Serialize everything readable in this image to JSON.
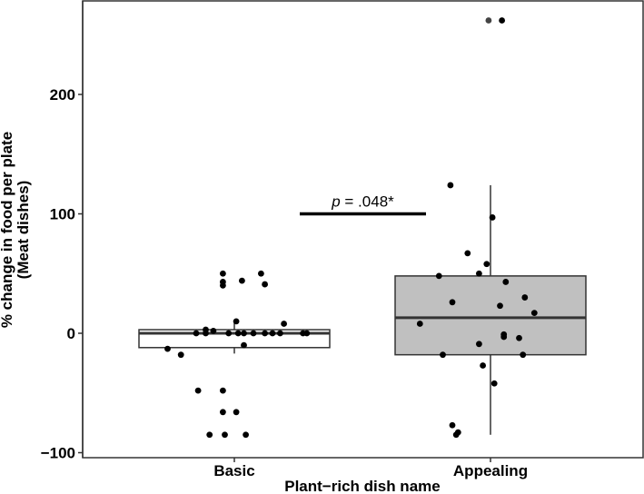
{
  "chart_data": {
    "type": "box",
    "xlabel": "Plant−rich dish name",
    "ylabel_line1": "% change in food per plate",
    "ylabel_line2": "(Meat dishes)",
    "ylim": [
      -100,
      265
    ],
    "yticks": [
      -100,
      0,
      100,
      200
    ],
    "ytick_labels": [
      "−100",
      "0",
      "100",
      "200"
    ],
    "grid": false,
    "categories": [
      "Basic",
      "Appealing"
    ],
    "boxes": [
      {
        "category": "Basic",
        "q1": -12,
        "median": 0,
        "q3": 3,
        "whisker_low": -17,
        "whisker_high": 10,
        "fill": "#ffffff"
      },
      {
        "category": "Appealing",
        "q1": -18,
        "median": 13,
        "q3": 48,
        "whisker_low": -85,
        "whisker_high": 124,
        "fill": "#c0c0c0"
      }
    ],
    "points": [
      {
        "category": "Basic",
        "jitter": -0.35,
        "y": -13
      },
      {
        "category": "Basic",
        "jitter": -0.28,
        "y": -18
      },
      {
        "category": "Basic",
        "jitter": -0.19,
        "y": -48
      },
      {
        "category": "Basic",
        "jitter": -0.13,
        "y": -85
      },
      {
        "category": "Basic",
        "jitter": -0.2,
        "y": 0
      },
      {
        "category": "Basic",
        "jitter": -0.15,
        "y": 0
      },
      {
        "category": "Basic",
        "jitter": -0.15,
        "y": 3
      },
      {
        "category": "Basic",
        "jitter": -0.11,
        "y": 2
      },
      {
        "category": "Basic",
        "jitter": -0.06,
        "y": 50
      },
      {
        "category": "Basic",
        "jitter": -0.06,
        "y": 43
      },
      {
        "category": "Basic",
        "jitter": -0.06,
        "y": 40
      },
      {
        "category": "Basic",
        "jitter": -0.06,
        "y": -48
      },
      {
        "category": "Basic",
        "jitter": -0.06,
        "y": -66
      },
      {
        "category": "Basic",
        "jitter": -0.05,
        "y": -85
      },
      {
        "category": "Basic",
        "jitter": -0.03,
        "y": 0
      },
      {
        "category": "Basic",
        "jitter": 0.01,
        "y": 10
      },
      {
        "category": "Basic",
        "jitter": 0.01,
        "y": -66
      },
      {
        "category": "Basic",
        "jitter": 0.02,
        "y": 0
      },
      {
        "category": "Basic",
        "jitter": 0.04,
        "y": 44
      },
      {
        "category": "Basic",
        "jitter": 0.05,
        "y": -10
      },
      {
        "category": "Basic",
        "jitter": 0.05,
        "y": 0
      },
      {
        "category": "Basic",
        "jitter": 0.06,
        "y": -85
      },
      {
        "category": "Basic",
        "jitter": 0.1,
        "y": 0
      },
      {
        "category": "Basic",
        "jitter": 0.14,
        "y": 50
      },
      {
        "category": "Basic",
        "jitter": 0.16,
        "y": 41
      },
      {
        "category": "Basic",
        "jitter": 0.16,
        "y": 0
      },
      {
        "category": "Basic",
        "jitter": 0.2,
        "y": 0
      },
      {
        "category": "Basic",
        "jitter": 0.24,
        "y": 0
      },
      {
        "category": "Basic",
        "jitter": 0.26,
        "y": 8
      },
      {
        "category": "Basic",
        "jitter": 0.36,
        "y": 0
      },
      {
        "category": "Basic",
        "jitter": 0.38,
        "y": 0
      },
      {
        "category": "Appealing",
        "jitter": -0.37,
        "y": 8
      },
      {
        "category": "Appealing",
        "jitter": -0.27,
        "y": 48
      },
      {
        "category": "Appealing",
        "jitter": -0.25,
        "y": -18
      },
      {
        "category": "Appealing",
        "jitter": -0.2,
        "y": 26
      },
      {
        "category": "Appealing",
        "jitter": -0.2,
        "y": -77
      },
      {
        "category": "Appealing",
        "jitter": -0.18,
        "y": -85
      },
      {
        "category": "Appealing",
        "jitter": -0.17,
        "y": -83
      },
      {
        "category": "Appealing",
        "jitter": -0.21,
        "y": 124
      },
      {
        "category": "Appealing",
        "jitter": -0.12,
        "y": 67
      },
      {
        "category": "Appealing",
        "jitter": -0.06,
        "y": 50
      },
      {
        "category": "Appealing",
        "jitter": -0.06,
        "y": -9
      },
      {
        "category": "Appealing",
        "jitter": -0.04,
        "y": -27
      },
      {
        "category": "Appealing",
        "jitter": -0.02,
        "y": 58
      },
      {
        "category": "Appealing",
        "jitter": 0.01,
        "y": 97
      },
      {
        "category": "Appealing",
        "jitter": 0.02,
        "y": -42
      },
      {
        "category": "Appealing",
        "jitter": 0.05,
        "y": 23
      },
      {
        "category": "Appealing",
        "jitter": 0.07,
        "y": -1
      },
      {
        "category": "Appealing",
        "jitter": 0.07,
        "y": -3
      },
      {
        "category": "Appealing",
        "jitter": 0.08,
        "y": 43
      },
      {
        "category": "Appealing",
        "jitter": 0.15,
        "y": -4
      },
      {
        "category": "Appealing",
        "jitter": 0.17,
        "y": -18
      },
      {
        "category": "Appealing",
        "jitter": 0.18,
        "y": 30
      },
      {
        "category": "Appealing",
        "jitter": 0.23,
        "y": 17
      },
      {
        "category": "Appealing",
        "jitter": -0.01,
        "y": 262,
        "color": "#444444"
      },
      {
        "category": "Appealing",
        "jitter": 0.06,
        "y": 262
      }
    ],
    "annotation": {
      "p_label": "p",
      "value_label": " = .048*",
      "bar_from": 0.5,
      "bar_to": 1.7,
      "bar_y": 100
    }
  },
  "colors": {
    "axis": "#333333",
    "point": "#000000",
    "box_line": "#333333"
  }
}
